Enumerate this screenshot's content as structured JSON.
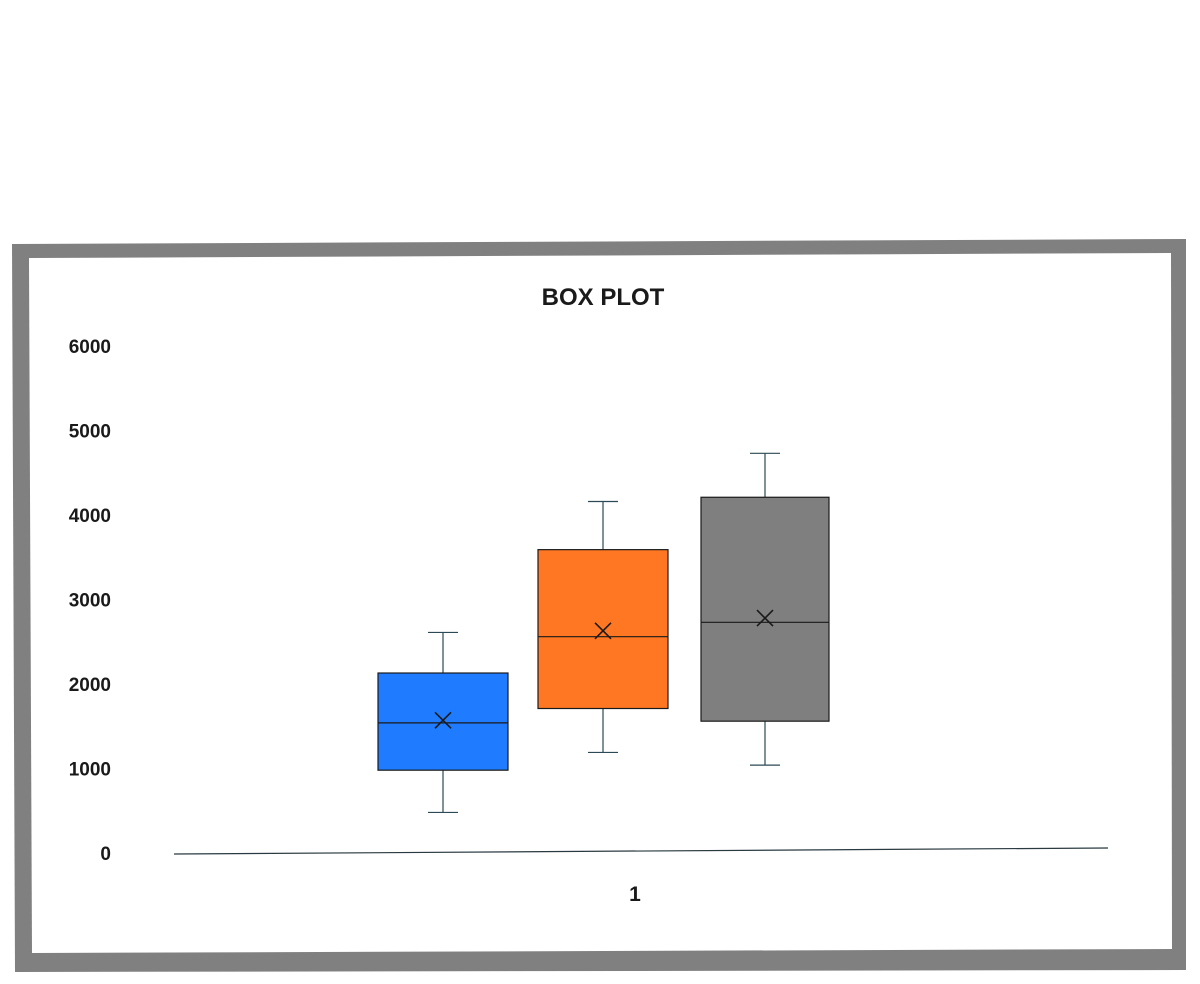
{
  "chart_data": {
    "type": "box",
    "title": "BOX PLOT",
    "categories": [
      "1"
    ],
    "ylim": [
      0,
      6000
    ],
    "yticks": [
      "0",
      "1000",
      "2000",
      "3000",
      "4000",
      "5000",
      "6000"
    ],
    "grid": false,
    "series": [
      {
        "color": "#1f7bff",
        "min": 480,
        "q1": 980,
        "median": 1540,
        "mean": 1570,
        "q3": 2130,
        "max": 2610
      },
      {
        "color": "#ff7722",
        "min": 1190,
        "q1": 1710,
        "median": 2560,
        "mean": 2630,
        "q3": 3590,
        "max": 4160
      },
      {
        "color": "#7f7f7f",
        "min": 1040,
        "q1": 1560,
        "median": 2730,
        "mean": 2780,
        "q3": 4210,
        "max": 4730
      }
    ]
  }
}
